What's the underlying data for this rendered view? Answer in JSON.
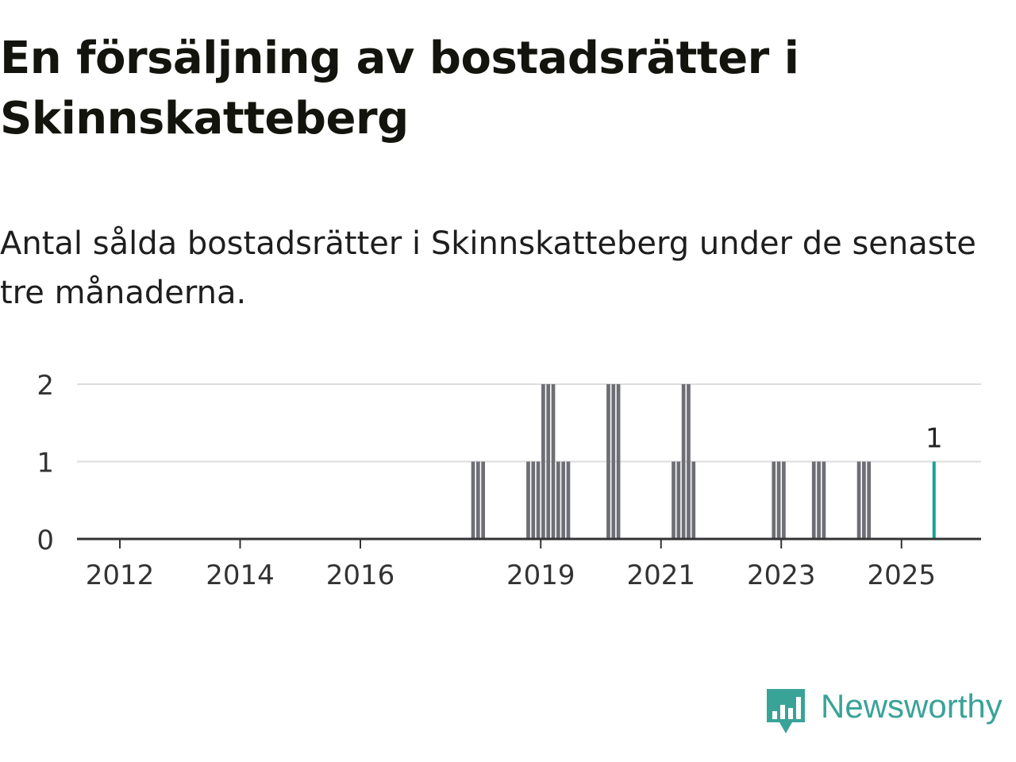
{
  "title": "En försäljning av bostadsrätter i Skinnskatteberg",
  "subtitle": "Antal sålda bostadsrätter i Skinnskatteberg under de senaste tre månaderna.",
  "brand": {
    "name": "Newsworthy",
    "icon": "bar-chart-speech-bubble-icon"
  },
  "colors": {
    "bar": "#6e6e76",
    "highlight": "#17a398",
    "grid": "#dddddd",
    "axis": "#333333",
    "text": "#333333"
  },
  "chart_data": {
    "type": "bar",
    "xlabel": "",
    "ylabel": "",
    "ylim": [
      0,
      2
    ],
    "yticks": [
      0,
      1,
      2
    ],
    "xticks": [
      "2012",
      "2014",
      "2016",
      "2019",
      "2021",
      "2023",
      "2025"
    ],
    "grid": true,
    "annotation": {
      "label": "1",
      "date": "2025-07"
    },
    "series": [
      {
        "dates": [
          "2017-11",
          "2017-12",
          "2018-01",
          "2018-10",
          "2018-11",
          "2018-12",
          "2019-01",
          "2019-02",
          "2019-03",
          "2019-04",
          "2019-05",
          "2019-06",
          "2020-02",
          "2020-03",
          "2020-04",
          "2021-03",
          "2021-04",
          "2021-05",
          "2021-06",
          "2021-07",
          "2022-11",
          "2022-12",
          "2023-01",
          "2023-07",
          "2023-08",
          "2023-09",
          "2024-04",
          "2024-05",
          "2024-06",
          "2025-07"
        ],
        "values": [
          1,
          1,
          1,
          1,
          1,
          1,
          2,
          2,
          2,
          1,
          1,
          1,
          2,
          2,
          2,
          1,
          1,
          2,
          2,
          1,
          1,
          1,
          1,
          1,
          1,
          1,
          1,
          1,
          1,
          1
        ]
      }
    ]
  }
}
